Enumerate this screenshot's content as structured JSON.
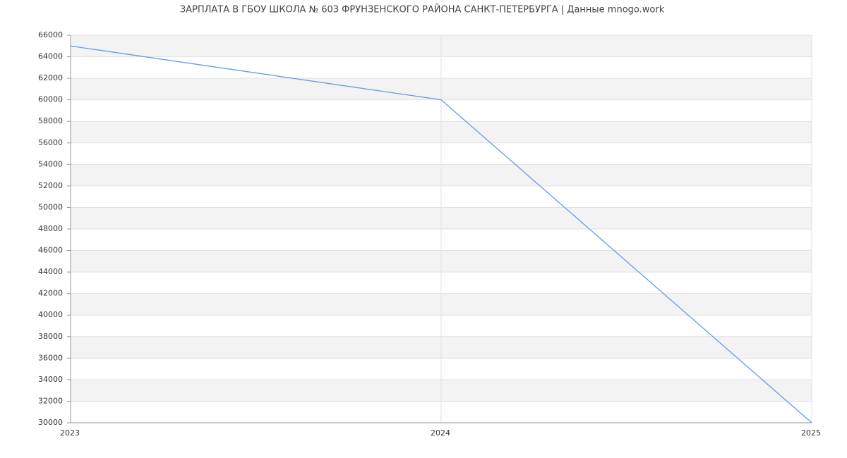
{
  "chart_data": {
    "type": "line",
    "title": "ЗАРПЛАТА В ГБОУ ШКОЛА № 603 ФРУНЗЕНСКОГО РАЙОНА САНКТ-ПЕТЕРБУРГА | Данные mnogo.work",
    "x": [
      2023,
      2024,
      2025
    ],
    "values": [
      65000,
      60000,
      30000
    ],
    "color": "#6699ee",
    "xlim": [
      2023,
      2025
    ],
    "xticks": [
      2023,
      2024,
      2025
    ],
    "ylim": [
      30000,
      66000
    ],
    "yticks": [
      30000,
      32000,
      34000,
      36000,
      38000,
      40000,
      42000,
      44000,
      46000,
      48000,
      50000,
      52000,
      54000,
      56000,
      58000,
      60000,
      62000,
      64000,
      66000
    ],
    "grid": true
  }
}
